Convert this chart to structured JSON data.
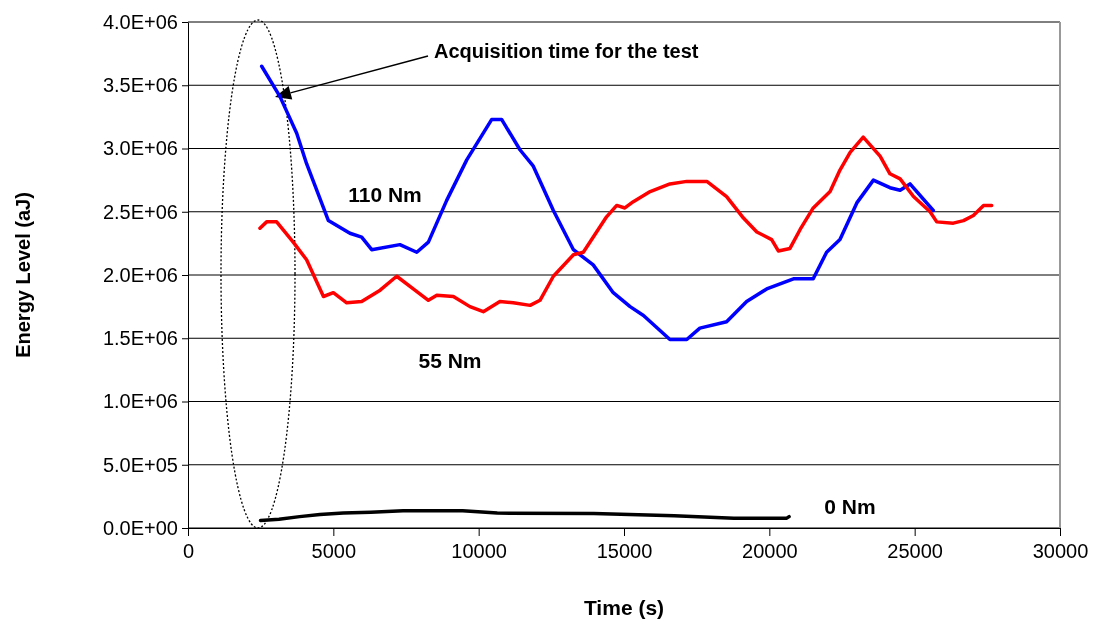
{
  "chart_data": {
    "type": "line",
    "xlabel": "Time (s)",
    "ylabel": "Energy Level (aJ)",
    "xlim": [
      0,
      30000
    ],
    "xticks": [
      0,
      5000,
      10000,
      15000,
      20000,
      25000,
      30000
    ],
    "ylim": [
      0,
      4000000
    ],
    "yticks": [
      {
        "value": 0,
        "label": "0.0E+00"
      },
      {
        "value": 500000,
        "label": "5.0E+05"
      },
      {
        "value": 1000000,
        "label": "1.0E+06"
      },
      {
        "value": 1500000,
        "label": "1.5E+06"
      },
      {
        "value": 2000000,
        "label": "2.0E+06"
      },
      {
        "value": 2500000,
        "label": "2.5E+06"
      },
      {
        "value": 3000000,
        "label": "3.0E+06"
      },
      {
        "value": 3500000,
        "label": "3.5E+06"
      },
      {
        "value": 4000000,
        "label": "4.0E+06"
      }
    ],
    "grid": "y",
    "marker": "none",
    "line_style": "solid",
    "series": [
      {
        "name": "110 Nm",
        "color": "#0000ff",
        "x": [
          2535,
          3165,
          3740,
          4080,
          4830,
          5570,
          5975,
          6320,
          7290,
          7870,
          8270,
          8900,
          9590,
          10450,
          10790,
          11420,
          11880,
          12570,
          13260,
          13940,
          14630,
          15210,
          15670,
          16580,
          17160,
          17610,
          18530,
          19220,
          19910,
          20830,
          21510,
          21970,
          22430,
          23010,
          23580,
          24150,
          24500,
          24840,
          25640
        ],
        "values": [
          3650000,
          3410000,
          3120000,
          2880000,
          2430000,
          2330000,
          2300000,
          2200000,
          2240000,
          2180000,
          2260000,
          2590000,
          2910000,
          3230000,
          3230000,
          2990000,
          2860000,
          2510000,
          2200000,
          2080000,
          1860000,
          1750000,
          1680000,
          1490000,
          1490000,
          1580000,
          1630000,
          1790000,
          1890000,
          1970000,
          1970000,
          2180000,
          2280000,
          2570000,
          2750000,
          2690000,
          2670000,
          2720000,
          2510000
        ]
      },
      {
        "name": "55 Nm",
        "color": "#ff0000",
        "x": [
          2475,
          2705,
          3050,
          3620,
          4080,
          4660,
          5000,
          5460,
          5975,
          6610,
          7180,
          7750,
          8270,
          8560,
          9130,
          9700,
          10160,
          10730,
          11190,
          11770,
          12110,
          12570,
          13260,
          13600,
          14400,
          14750,
          15030,
          15320,
          15900,
          16580,
          17160,
          17850,
          18530,
          19110,
          19570,
          20080,
          20310,
          20710,
          21060,
          21510,
          22090,
          22430,
          22780,
          23230,
          23810,
          24150,
          24500,
          24960,
          25530,
          25760,
          26330,
          26680,
          27020,
          27370,
          27650
        ],
        "values": [
          2370000,
          2420000,
          2420000,
          2260000,
          2120000,
          1830000,
          1860000,
          1780000,
          1790000,
          1880000,
          1990000,
          1890000,
          1800000,
          1840000,
          1830000,
          1750000,
          1710000,
          1790000,
          1780000,
          1760000,
          1800000,
          1990000,
          2160000,
          2180000,
          2460000,
          2550000,
          2530000,
          2580000,
          2660000,
          2720000,
          2740000,
          2740000,
          2620000,
          2450000,
          2340000,
          2280000,
          2190000,
          2210000,
          2360000,
          2530000,
          2660000,
          2830000,
          2970000,
          3090000,
          2940000,
          2800000,
          2760000,
          2620000,
          2500000,
          2420000,
          2410000,
          2430000,
          2470000,
          2550000,
          2550000
        ]
      },
      {
        "name": "0 Nm",
        "color": "#000000",
        "x": [
          2495,
          3130,
          3840,
          4540,
          5340,
          6290,
          7400,
          9450,
          10640,
          13960,
          16730,
          18780,
          20600,
          20680
        ],
        "values": [
          60000,
          70000,
          90000,
          107000,
          118000,
          125000,
          136000,
          136000,
          118000,
          114000,
          96000,
          78000,
          78000,
          90000
        ]
      }
    ],
    "annotations": [
      "Acquisition time for the test"
    ]
  }
}
